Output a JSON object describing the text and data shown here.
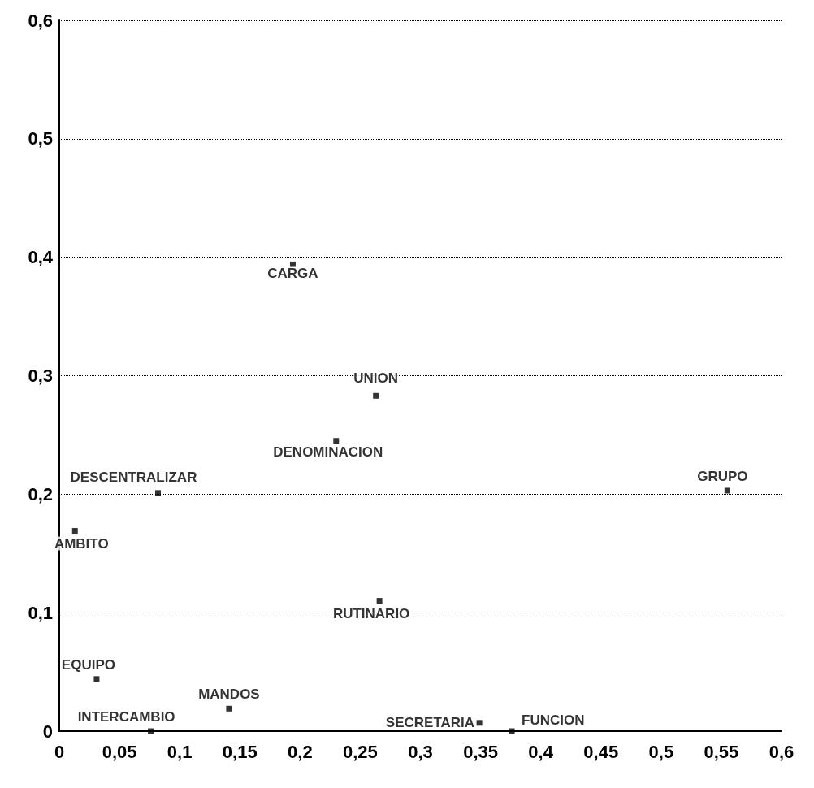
{
  "chart_data": {
    "type": "scatter",
    "color": "#000000",
    "marker": "square",
    "grid": "y",
    "line_style": "dotted",
    "x": [
      0.194,
      0.263,
      0.23,
      0.082,
      0.013,
      0.555,
      0.266,
      0.031,
      0.141,
      0.076,
      0.349,
      0.376
    ],
    "values": [
      0.394,
      0.283,
      0.245,
      0.201,
      0.169,
      0.203,
      0.11,
      0.044,
      0.019,
      0,
      0.007,
      0
    ],
    "annotations": [
      {
        "text": "CARGA",
        "x": 0.194,
        "y": 0.394
      },
      {
        "text": "UNION",
        "x": 0.263,
        "y": 0.283
      },
      {
        "text": "DENOMINACION",
        "x": 0.23,
        "y": 0.245
      },
      {
        "text": "DESCENTRALIZAR",
        "x": 0.082,
        "y": 0.201
      },
      {
        "text": "AMBITO",
        "x": 0.013,
        "y": 0.169
      },
      {
        "text": "GRUPO",
        "x": 0.555,
        "y": 0.203
      },
      {
        "text": "RUTINARIO",
        "x": 0.266,
        "y": 0.11
      },
      {
        "text": "EQUIPO",
        "x": 0.031,
        "y": 0.044
      },
      {
        "text": "MANDOS",
        "x": 0.141,
        "y": 0.019
      },
      {
        "text": "INTERCAMBIO",
        "x": 0.076,
        "y": 0
      },
      {
        "text": "SECRETARIA",
        "x": 0.349,
        "y": 0.007
      },
      {
        "text": "FUNCION",
        "x": 0.376,
        "y": 0
      }
    ],
    "xlim": [
      0,
      0.6
    ],
    "xticks": [
      0,
      {
        "value": 0.05,
        "label": "0,05"
      },
      {
        "value": 0.1,
        "label": "0,1"
      },
      {
        "value": 0.15,
        "label": "0,15"
      },
      {
        "value": 0.2,
        "label": "0,2"
      },
      {
        "value": 0.25,
        "label": "0,25"
      },
      {
        "value": 0.3,
        "label": "0,3"
      },
      {
        "value": 0.35,
        "label": "0,35"
      },
      {
        "value": 0.4,
        "label": "0,4"
      },
      {
        "value": 0.45,
        "label": "0,45"
      },
      {
        "value": 0.5,
        "label": "0,5"
      },
      {
        "value": 0.55,
        "label": "0,55"
      },
      {
        "value": 0.6,
        "label": "0,6"
      }
    ],
    "ylim": [
      0,
      0.6
    ],
    "yticks": [
      0,
      {
        "value": 0.1,
        "label": "0,1"
      },
      {
        "value": 0.2,
        "label": "0,2"
      },
      {
        "value": 0.3,
        "label": "0,3"
      },
      {
        "value": 0.4,
        "label": "0,4"
      },
      {
        "value": 0.5,
        "label": "0,5"
      },
      {
        "value": 0.6,
        "label": "0,6"
      }
    ]
  }
}
